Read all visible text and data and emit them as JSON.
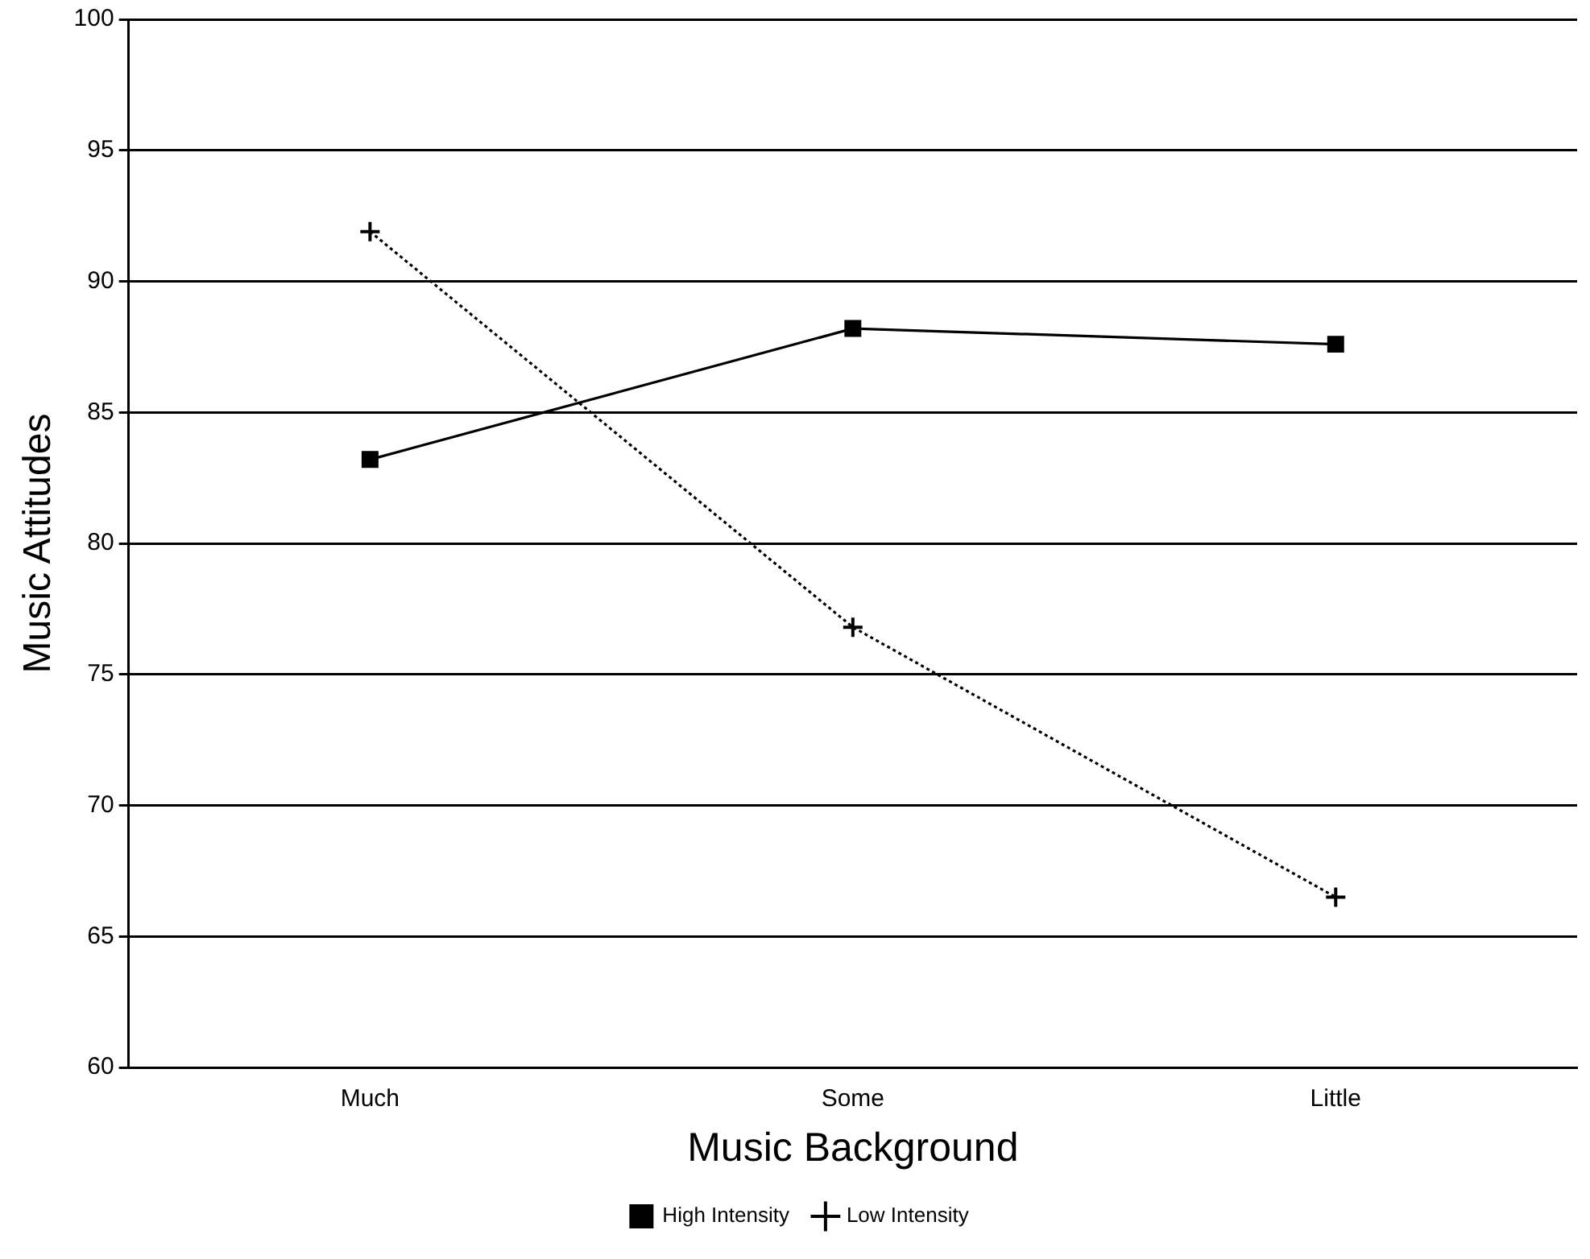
{
  "chart_data": {
    "type": "line",
    "xlabel": "Music Background",
    "ylabel": "Music Attitudes",
    "categories": [
      "Much",
      "Some",
      "Little"
    ],
    "series": [
      {
        "name": "High Intensity",
        "color": "#000000",
        "values": [
          83.2,
          88.2,
          87.6
        ],
        "marker": "square",
        "line_style": "solid"
      },
      {
        "name": "Low Intensity",
        "color": "#000000",
        "values": [
          91.9,
          76.8,
          66.5
        ],
        "marker": "cross",
        "line_style": "dotted"
      }
    ],
    "ylim": [
      60,
      100
    ],
    "yticks": [
      60,
      65,
      70,
      75,
      80,
      85,
      90,
      95,
      100
    ],
    "grid": "y",
    "legend": "bottom"
  }
}
